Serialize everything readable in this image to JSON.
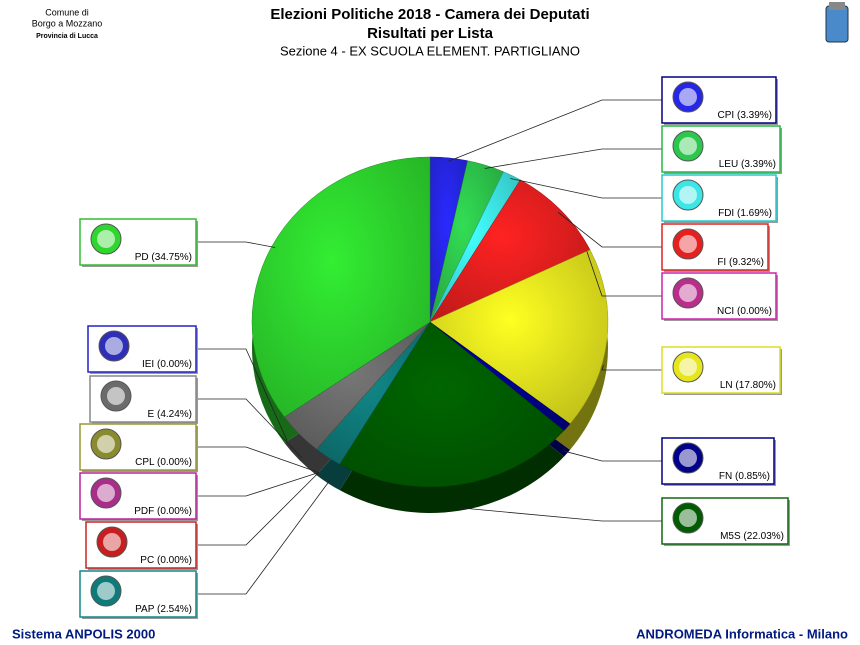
{
  "header": {
    "municipality_line1": "Comune di",
    "municipality_line2": "Borgo a Mozzano",
    "province": "Provincia di Lucca"
  },
  "chart_data": {
    "type": "pie",
    "title": "Elezioni Politiche 2018 - Camera dei Deputati",
    "subtitle": "Risultati per Lista",
    "section": "Sezione 4 - EX SCUOLA ELEMENT. PARTIGLIANO",
    "categories": [
      "CPI",
      "LEU",
      "FDI",
      "FI",
      "NCI",
      "LN",
      "FN",
      "M5S",
      "PAP",
      "PC",
      "PDF",
      "CPL",
      "E",
      "IEI",
      "PD"
    ],
    "values": [
      3.39,
      3.39,
      1.69,
      9.32,
      0.0,
      17.8,
      0.85,
      22.03,
      2.54,
      0.0,
      0.0,
      0.0,
      4.24,
      0.0,
      34.75
    ],
    "value_labels": [
      "(3.39%)",
      "(3.39%)",
      "(1.69%)",
      "(9.32%)",
      "(0.00%)",
      "(17.80%)",
      "(0.85%)",
      "(22.03%)",
      "(2.54%)",
      "(0.00%)",
      "(0.00%)",
      "(0.00%)",
      "(4.24%)",
      "(0.00%)",
      "(34.75%)"
    ],
    "colors": [
      "#2a2aff",
      "#33dd55",
      "#44ffff",
      "#ff2222",
      "#cc3399",
      "#ffff22",
      "#000099",
      "#006600",
      "#118888",
      "#dd2222",
      "#bb3399",
      "#999933",
      "#777777",
      "#3333cc",
      "#33ee33"
    ]
  },
  "footer": {
    "left": "Sistema ANPOLIS 2000",
    "right": "ANDROMEDA Informatica - Milano"
  }
}
